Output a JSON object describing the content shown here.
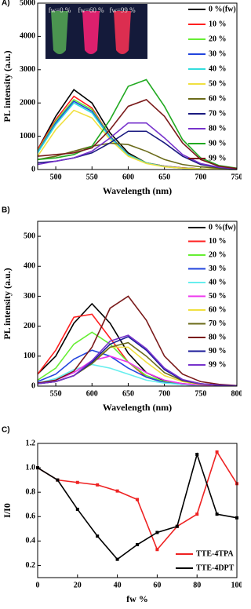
{
  "chart_data": [
    {
      "type": "line",
      "panel_label": "A)",
      "xlabel": "Wavelength (nm)",
      "ylabel": "PL intensity (a.u.)",
      "xlim": [
        475,
        750
      ],
      "ylim": [
        0,
        5000
      ],
      "xticks": [
        500,
        550,
        600,
        650,
        700,
        750
      ],
      "yticks": [
        0,
        1000,
        2000,
        3000,
        4000,
        5000
      ],
      "legend": "upper right",
      "inset_labels": [
        "fw=0 %",
        "fw=60 %",
        "fw=99 %"
      ],
      "x": [
        475,
        500,
        525,
        550,
        575,
        600,
        625,
        650,
        675,
        700,
        725,
        750
      ],
      "series": [
        {
          "name": "0 %(fw)",
          "color": "#000000",
          "values": [
            600,
            1600,
            2400,
            2000,
            1100,
            500,
            200,
            100,
            50,
            20,
            10,
            5
          ]
        },
        {
          "name": "10 %",
          "color": "#ff2020",
          "values": [
            600,
            1500,
            2200,
            1850,
            1000,
            450,
            200,
            100,
            50,
            20,
            10,
            5
          ]
        },
        {
          "name": "20 %",
          "color": "#66ee33",
          "values": [
            550,
            1450,
            2100,
            1800,
            1000,
            450,
            200,
            90,
            40,
            20,
            10,
            5
          ]
        },
        {
          "name": "30 %",
          "color": "#2244dd",
          "values": [
            520,
            1400,
            2050,
            1750,
            980,
            440,
            190,
            90,
            40,
            20,
            10,
            5
          ]
        },
        {
          "name": "40 %",
          "color": "#33dddd",
          "values": [
            500,
            1350,
            2000,
            1700,
            950,
            430,
            190,
            90,
            40,
            20,
            10,
            5
          ]
        },
        {
          "name": "50 %",
          "color": "#f0e040",
          "values": [
            400,
            1200,
            1780,
            1550,
            900,
            400,
            180,
            80,
            40,
            20,
            10,
            5
          ]
        },
        {
          "name": "60 %",
          "color": "#6b6b1a",
          "values": [
            300,
            400,
            550,
            700,
            790,
            750,
            550,
            300,
            150,
            80,
            40,
            20
          ]
        },
        {
          "name": "70 %",
          "color": "#1a1a80",
          "values": [
            200,
            250,
            350,
            500,
            800,
            1150,
            1150,
            800,
            400,
            150,
            60,
            20
          ]
        },
        {
          "name": "80 %",
          "color": "#7733cc",
          "values": [
            150,
            250,
            350,
            550,
            950,
            1400,
            1400,
            950,
            450,
            180,
            70,
            25
          ]
        },
        {
          "name": "90 %",
          "color": "#22aa22",
          "values": [
            300,
            350,
            450,
            700,
            1500,
            2500,
            2700,
            1900,
            900,
            350,
            120,
            40
          ]
        },
        {
          "name": "99 %",
          "color": "#7a1a1a",
          "values": [
            400,
            450,
            500,
            650,
            1200,
            1900,
            2100,
            1600,
            800,
            300,
            100,
            30
          ]
        }
      ]
    },
    {
      "type": "line",
      "panel_label": "B)",
      "xlabel": "Wavelength (nm)",
      "ylabel": "PL intensity (a.u.)",
      "xlim": [
        525,
        800
      ],
      "ylim": [
        0,
        550
      ],
      "xticks": [
        550,
        600,
        650,
        700,
        750,
        800
      ],
      "yticks": [
        0,
        100,
        200,
        300,
        400,
        500
      ],
      "legend": "upper right",
      "x": [
        525,
        550,
        575,
        600,
        625,
        650,
        675,
        700,
        725,
        750,
        775,
        800
      ],
      "series": [
        {
          "name": "0 %(fw)",
          "color": "#000000",
          "values": [
            40,
            100,
            210,
            275,
            210,
            110,
            45,
            18,
            8,
            4,
            2,
            1
          ]
        },
        {
          "name": "10 %",
          "color": "#ff2020",
          "values": [
            40,
            120,
            230,
            240,
            160,
            80,
            30,
            12,
            5,
            3,
            2,
            1
          ]
        },
        {
          "name": "20 %",
          "color": "#66ee33",
          "values": [
            20,
            60,
            140,
            180,
            140,
            80,
            35,
            15,
            6,
            3,
            2,
            1
          ]
        },
        {
          "name": "30 %",
          "color": "#2244dd",
          "values": [
            15,
            40,
            90,
            120,
            100,
            60,
            30,
            12,
            5,
            3,
            2,
            1
          ]
        },
        {
          "name": "40 %",
          "color": "#66eeee",
          "values": [
            10,
            25,
            55,
            72,
            60,
            40,
            20,
            10,
            5,
            3,
            2,
            1
          ]
        },
        {
          "name": "50 %",
          "color": "#ee33ee",
          "values": [
            10,
            20,
            45,
            85,
            100,
            80,
            45,
            20,
            8,
            4,
            2,
            1
          ]
        },
        {
          "name": "60 %",
          "color": "#f0e040",
          "values": [
            8,
            15,
            35,
            80,
            130,
            130,
            80,
            35,
            15,
            6,
            3,
            1
          ]
        },
        {
          "name": "70 %",
          "color": "#6b6b1a",
          "values": [
            8,
            15,
            35,
            75,
            130,
            145,
            100,
            45,
            18,
            7,
            3,
            1
          ]
        },
        {
          "name": "80 %",
          "color": "#7a1a1a",
          "values": [
            10,
            20,
            50,
            130,
            260,
            300,
            220,
            100,
            40,
            15,
            6,
            2
          ]
        },
        {
          "name": "90 %",
          "color": "#1a1a99",
          "values": [
            8,
            15,
            35,
            80,
            140,
            165,
            120,
            55,
            20,
            8,
            3,
            1
          ]
        },
        {
          "name": "99 %",
          "color": "#7733cc",
          "values": [
            8,
            15,
            35,
            85,
            150,
            170,
            125,
            60,
            22,
            8,
            3,
            1
          ]
        }
      ]
    },
    {
      "type": "line",
      "panel_label": "C)",
      "xlabel": "fw %",
      "ylabel": "I/I0",
      "marker": "square",
      "xlim": [
        0,
        100
      ],
      "ylim": [
        0.1,
        1.2
      ],
      "xticks": [
        0,
        20,
        40,
        60,
        80,
        100
      ],
      "yticks": [
        0.2,
        0.4,
        0.6,
        0.8,
        {
          "value": 1,
          "label": "1.0"
        },
        1.2
      ],
      "legend": "lower right",
      "x": [
        0,
        10,
        20,
        30,
        40,
        50,
        60,
        70,
        80,
        90,
        100
      ],
      "series": [
        {
          "name": "TTE-4TPA",
          "color": "#ee2222",
          "values": [
            1.0,
            0.9,
            0.88,
            0.86,
            0.81,
            0.74,
            0.33,
            0.52,
            0.62,
            1.13,
            0.87
          ]
        },
        {
          "name": "TTE-4DPT",
          "color": "#000000",
          "values": [
            1.0,
            0.9,
            0.66,
            0.44,
            0.25,
            0.37,
            0.47,
            0.52,
            1.11,
            0.62,
            0.59
          ]
        }
      ]
    }
  ]
}
